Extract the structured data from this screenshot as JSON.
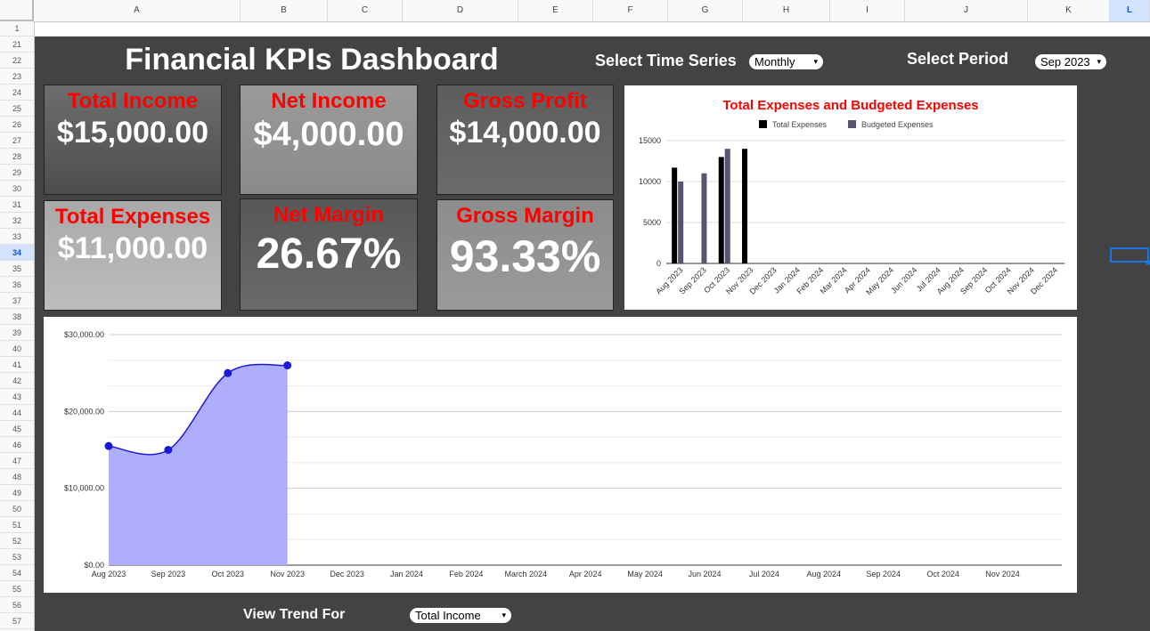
{
  "spreadsheet": {
    "columns": [
      "A",
      "B",
      "C",
      "D",
      "E",
      "F",
      "G",
      "H",
      "I",
      "J",
      "K",
      "L"
    ],
    "rows": [
      "1",
      "21",
      "22",
      "23",
      "24",
      "25",
      "26",
      "27",
      "28",
      "29",
      "30",
      "31",
      "32",
      "33",
      "34",
      "35",
      "36",
      "37",
      "38",
      "39",
      "40",
      "41",
      "42",
      "43",
      "44",
      "45",
      "46",
      "47",
      "48",
      "49",
      "50",
      "51",
      "52",
      "53",
      "54",
      "55",
      "56",
      "57"
    ],
    "selected_column": "L",
    "selected_row": "34"
  },
  "dashboard": {
    "title": "Financial KPIs Dashboard",
    "time_series_label": "Select Time Series",
    "time_series_value": "Monthly",
    "period_label": "Select Period",
    "period_value": "Sep 2023",
    "trend_label": "View Trend For",
    "trend_value": "Total Income",
    "dropdown_arrow": "▾"
  },
  "kpis": {
    "total_income": {
      "label": "Total Income",
      "value": "$15,000.00"
    },
    "net_income": {
      "label": "Net Income",
      "value": "$4,000.00"
    },
    "gross_profit": {
      "label": "Gross Profit",
      "value": "$14,000.00"
    },
    "total_expenses": {
      "label": "Total Expenses",
      "value": "$11,000.00"
    },
    "net_margin": {
      "label": "Net Margin",
      "value": "26.67%"
    },
    "gross_margin": {
      "label": "Gross Margin",
      "value": "93.33%"
    }
  },
  "colors": {
    "dashboard_bg": "#434343",
    "kpi_label": "#ff0000",
    "total_expenses_bar": "#000000",
    "budgeted_bar": "#5a5270",
    "trend_line": "#1a1ad6",
    "trend_fill": "#aeaefc"
  },
  "chart_data": [
    {
      "type": "bar",
      "title": "Total Expenses and Budgeted Expenses",
      "categories": [
        "Aug 2023",
        "Sep 2023",
        "Oct 2023",
        "Nov 2023",
        "Dec 2023",
        "Jan 2024",
        "Feb 2024",
        "Mar 2024",
        "Apr 2024",
        "May 2024",
        "Jun 2024",
        "Jul 2024",
        "Aug 2024",
        "Sep 2024",
        "Oct 2024",
        "Nov 2024",
        "Dec 2024"
      ],
      "series": [
        {
          "name": "Total Expenses",
          "values": [
            11700,
            null,
            13000,
            14000,
            null,
            null,
            null,
            null,
            null,
            null,
            null,
            null,
            null,
            null,
            null,
            null,
            null
          ]
        },
        {
          "name": "Budgeted Expenses",
          "values": [
            10000,
            11000,
            14000,
            null,
            null,
            null,
            null,
            null,
            null,
            null,
            null,
            null,
            null,
            null,
            null,
            null,
            null
          ]
        }
      ],
      "ylim": [
        0,
        15000
      ],
      "yticks": [
        "0",
        "5000",
        "10000",
        "15000"
      ],
      "legend": "top",
      "grid": true
    },
    {
      "type": "area",
      "categories": [
        "Aug 2023",
        "Sep 2023",
        "Oct 2023",
        "Nov 2023",
        "Dec 2023",
        "Jan 2024",
        "Feb 2024",
        "March 2024",
        "Apr 2024",
        "May 2024",
        "Jun 2024",
        "Jul 2024",
        "Aug 2024",
        "Sep 2024",
        "Oct 2024",
        "Nov 2024"
      ],
      "values": [
        15500,
        15000,
        25000,
        26000,
        null,
        null,
        null,
        null,
        null,
        null,
        null,
        null,
        null,
        null,
        null,
        null
      ],
      "ylim": [
        0,
        30000
      ],
      "yticks": [
        "$0.00",
        "$10,000.00",
        "$20,000.00",
        "$30,000.00"
      ],
      "grid": true
    }
  ]
}
